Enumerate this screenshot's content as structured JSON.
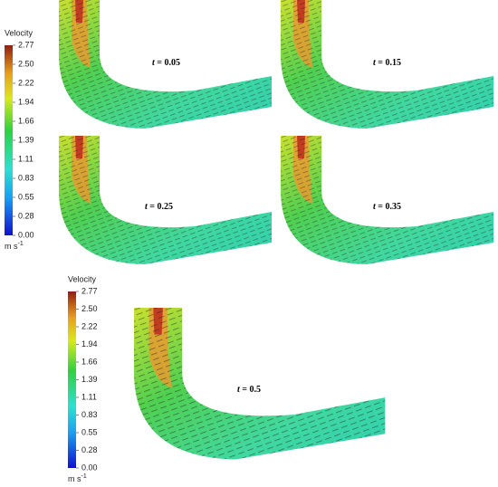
{
  "colorbars": [
    {
      "title": "Velocity",
      "ticks": [
        "0.00",
        "0.28",
        "0.55",
        "0.83",
        "1.11",
        "1.39",
        "1.66",
        "1.94",
        "2.22",
        "2.50",
        "2.77"
      ],
      "unit": {
        "base": "m s",
        "exponent": "-1"
      }
    },
    {
      "title": "Velocity",
      "ticks": [
        "0.00",
        "0.28",
        "0.55",
        "0.83",
        "1.11",
        "1.39",
        "1.66",
        "1.94",
        "2.22",
        "2.50",
        "2.77"
      ],
      "unit": {
        "base": "m s",
        "exponent": "-1"
      }
    }
  ],
  "panels": [
    {
      "symbol": "t",
      "rest": "= 0.05"
    },
    {
      "symbol": "t",
      "rest": "= 0.15"
    },
    {
      "symbol": "t",
      "rest": "= 0.25"
    },
    {
      "symbol": "t",
      "rest": "= 0.35"
    },
    {
      "symbol": "t",
      "rest": "= 0.5"
    }
  ]
}
